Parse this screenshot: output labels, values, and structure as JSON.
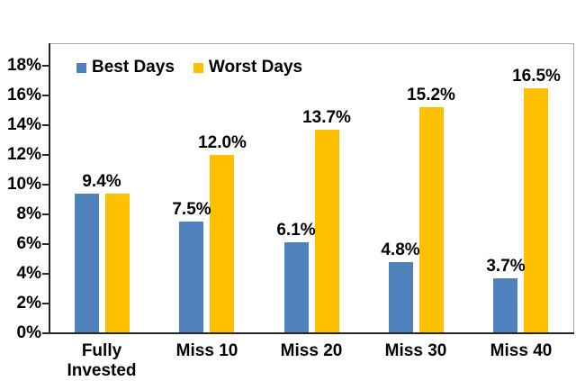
{
  "chart_data": {
    "type": "bar",
    "title": "",
    "categories": [
      "Fully\nInvested",
      "Miss 10",
      "Miss 20",
      "Miss 30",
      "Miss 40"
    ],
    "series": [
      {
        "name": "Best Days",
        "color": "#4F81BD",
        "values": [
          9.4,
          7.5,
          6.1,
          4.8,
          3.7
        ]
      },
      {
        "name": "Worst Days",
        "color": "#FFC000",
        "values": [
          9.4,
          12.0,
          13.7,
          15.2,
          16.5
        ]
      }
    ],
    "data_labels": [
      {
        "category_index": 0,
        "anchor": "group",
        "text": "9.4%",
        "value": 9.4
      },
      {
        "category_index": 1,
        "anchor": "best",
        "text": "7.5%",
        "value": 7.5
      },
      {
        "category_index": 1,
        "anchor": "worst",
        "text": "12.0%",
        "value": 12.0
      },
      {
        "category_index": 2,
        "anchor": "best",
        "text": "6.1%",
        "value": 6.1
      },
      {
        "category_index": 2,
        "anchor": "worst",
        "text": "13.7%",
        "value": 13.7
      },
      {
        "category_index": 3,
        "anchor": "best",
        "text": "4.8%",
        "value": 4.8
      },
      {
        "category_index": 3,
        "anchor": "worst",
        "text": "15.2%",
        "value": 15.2
      },
      {
        "category_index": 4,
        "anchor": "best",
        "text": "3.7%",
        "value": 3.7
      },
      {
        "category_index": 4,
        "anchor": "worst",
        "text": "16.5%",
        "value": 16.5
      }
    ],
    "y_axis": {
      "tick_labels": [
        "0%",
        "2%",
        "4%",
        "6%",
        "8%",
        "10%",
        "12%",
        "14%",
        "16%",
        "18%"
      ],
      "tick_values": [
        0,
        2,
        4,
        6,
        8,
        10,
        12,
        14,
        16,
        18
      ],
      "axis_max": 19.5
    },
    "grid": false,
    "legend_position": "top-left-inside",
    "colors": {
      "best_days": "#4F81BD",
      "worst_days": "#FFC000",
      "axis": "#262626",
      "plot_frame": "#a6a6a6",
      "text": "#000000"
    }
  }
}
